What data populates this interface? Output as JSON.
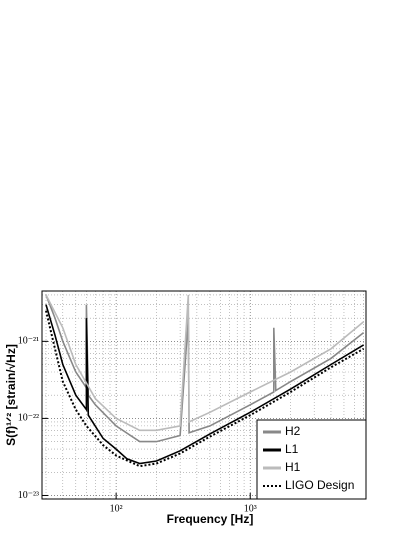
{
  "chart_data": {
    "type": "line",
    "xlabel": "Frequency [Hz]",
    "ylabel": "S(f)¹ᐟ² [strain/√Hz]",
    "log_x": true,
    "log_y": true,
    "grid": true,
    "legend": "lower right",
    "xlim": [
      28,
      7300
    ],
    "ylim": [
      9e-24,
      4.5e-21
    ],
    "xticks": [
      {
        "value": 100,
        "label": "10²"
      },
      {
        "value": 1000,
        "label": "10³"
      }
    ],
    "yticks": [
      {
        "value": 1e-23,
        "label": "10⁻²³"
      },
      {
        "value": 1e-22,
        "label": "10⁻²²"
      },
      {
        "value": 1e-21,
        "label": "10⁻²¹"
      }
    ],
    "xminorticks": [
      30,
      40,
      50,
      60,
      70,
      80,
      90,
      200,
      300,
      400,
      500,
      600,
      700,
      800,
      900,
      2000,
      3000,
      4000,
      5000,
      6000,
      7000
    ],
    "yminorticks": [
      2e-23,
      3e-23,
      4e-23,
      5e-23,
      6e-23,
      7e-23,
      8e-23,
      9e-23,
      2e-22,
      3e-22,
      4e-22,
      5e-22,
      6e-22,
      7e-22,
      8e-22,
      9e-22,
      2e-21,
      3e-21,
      4e-21
    ],
    "series": [
      {
        "name": "H2",
        "color": "#888888",
        "dash": "solid",
        "x": [
          30,
          35,
          40,
          50,
          60,
          60,
          62,
          70,
          100,
          150,
          200,
          300,
          345,
          350,
          500,
          1000,
          1500,
          1500,
          1550,
          2000,
          4000,
          7000
        ],
        "values": [
          4e-21,
          2e-21,
          1e-21,
          4e-22,
          2.5e-22,
          3e-21,
          2e-22,
          1.5e-22,
          8e-23,
          5e-23,
          5e-23,
          6e-23,
          2e-21,
          6.5e-23,
          8e-23,
          1.5e-22,
          2.2e-22,
          1.5e-21,
          2.3e-22,
          3e-22,
          6e-22,
          1.3e-21
        ]
      },
      {
        "name": "L1",
        "color": "#000000",
        "dash": "solid",
        "x": [
          30,
          35,
          40,
          50,
          60,
          60,
          62,
          80,
          100,
          120,
          150,
          200,
          300,
          500,
          1000,
          2000,
          4000,
          7000
        ],
        "values": [
          3e-21,
          1.2e-21,
          5e-22,
          2e-22,
          1.3e-22,
          2e-21,
          1.1e-22,
          5.5e-23,
          4e-23,
          3e-23,
          2.6e-23,
          2.8e-23,
          3.8e-23,
          6.3e-23,
          1.2e-22,
          2.4e-22,
          5e-22,
          9e-22
        ]
      },
      {
        "name": "H1",
        "color": "#bbbbbb",
        "dash": "solid",
        "x": [
          30,
          40,
          50,
          70,
          100,
          150,
          200,
          300,
          345,
          350,
          500,
          1000,
          2000,
          4000,
          7000
        ],
        "values": [
          4e-21,
          1.5e-21,
          5e-22,
          1.8e-22,
          1e-22,
          7e-23,
          7e-23,
          8e-23,
          4e-21,
          9e-23,
          1.2e-22,
          2.2e-22,
          4e-22,
          8e-22,
          1.8e-21
        ]
      },
      {
        "name": "LIGO Design",
        "color": "#000000",
        "dash": "dotted",
        "x": [
          30,
          35,
          40,
          50,
          60,
          80,
          100,
          150,
          200,
          300,
          500,
          1000,
          2000,
          4000,
          7000
        ],
        "values": [
          2.5e-21,
          8e-22,
          3e-22,
          1.3e-22,
          8e-23,
          4.5e-23,
          3.3e-23,
          2.4e-23,
          2.6e-23,
          3.5e-23,
          5.8e-23,
          1.1e-22,
          2.2e-22,
          4.6e-22,
          8e-22
        ]
      }
    ]
  }
}
